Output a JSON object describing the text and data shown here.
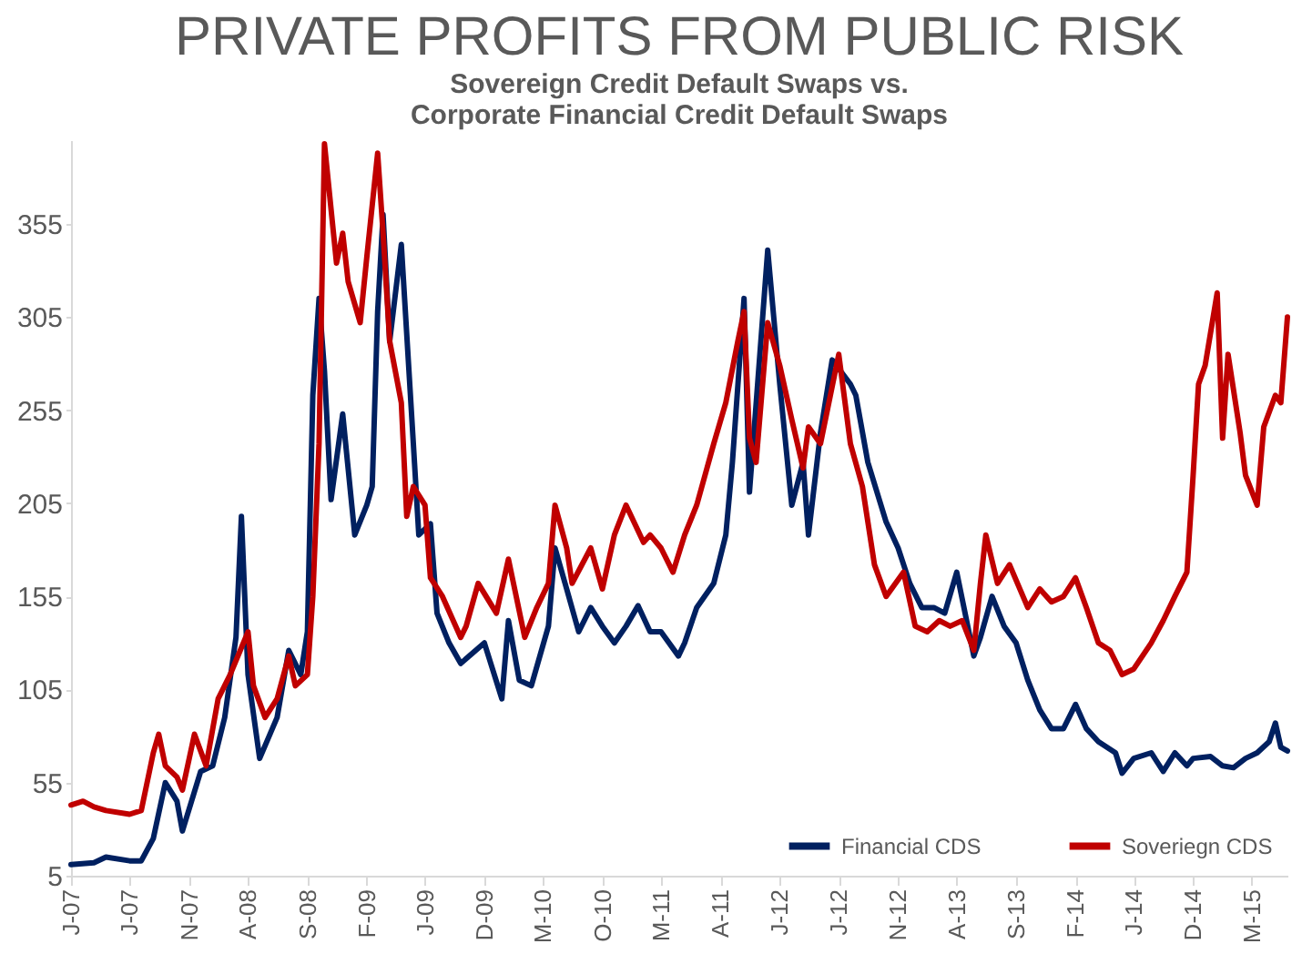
{
  "chart_data": {
    "type": "line",
    "title": "PRIVATE PROFITS FROM PUBLIC RISK",
    "subtitle": "Sovereign Credit Default Swaps vs.\nCorporate Financial Credit Default Swaps",
    "xlim": [
      "2007-01",
      "2015-08"
    ],
    "xticks": [
      {
        "value": "2007-01",
        "label": "J-07"
      },
      {
        "value": "2007-06",
        "label": "J-07"
      },
      {
        "value": "2007-11",
        "label": "N-07"
      },
      {
        "value": "2008-04",
        "label": "A-08"
      },
      {
        "value": "2008-09",
        "label": "S-08"
      },
      {
        "value": "2009-02",
        "label": "F-09"
      },
      {
        "value": "2009-07",
        "label": "J-09"
      },
      {
        "value": "2009-12",
        "label": "D-09"
      },
      {
        "value": "2010-05",
        "label": "M-10"
      },
      {
        "value": "2010-10",
        "label": "O-10"
      },
      {
        "value": "2011-03",
        "label": "M-11"
      },
      {
        "value": "2011-08",
        "label": "A-11"
      },
      {
        "value": "2012-01",
        "label": "J-12"
      },
      {
        "value": "2012-06",
        "label": "J-12"
      },
      {
        "value": "2012-11",
        "label": "N-12"
      },
      {
        "value": "2013-04",
        "label": "A-13"
      },
      {
        "value": "2013-09",
        "label": "S-13"
      },
      {
        "value": "2014-02",
        "label": "F-14"
      },
      {
        "value": "2014-07",
        "label": "J-14"
      },
      {
        "value": "2014-12",
        "label": "D-14"
      },
      {
        "value": "2015-05",
        "label": "M-15"
      }
    ],
    "ylim": [
      5,
      400
    ],
    "yticks": [
      5,
      55,
      105,
      155,
      205,
      255,
      305,
      355
    ],
    "grid": false,
    "legend": "bottom right",
    "line_style": "solid",
    "series": [
      {
        "name": "Financial CDS",
        "color": "#002060",
        "x": [
          "2007-01",
          "2007-03",
          "2007-04",
          "2007-06",
          "2007-07",
          "2007-08",
          "2007-09",
          "2007-10",
          "2007-10-15",
          "2007-12",
          "2008-01",
          "2008-02",
          "2008-03",
          "2008-03-15",
          "2008-04",
          "2008-05",
          "2008-06-15",
          "2008-07-15",
          "2008-08-15",
          "2008-09",
          "2008-09-15",
          "2008-10",
          "2008-10-15",
          "2008-11",
          "2008-12",
          "2009-01",
          "2009-02",
          "2009-02-15",
          "2009-03",
          "2009-03-15",
          "2009-04",
          "2009-05",
          "2009-06",
          "2009-06-15",
          "2009-07-15",
          "2009-08",
          "2009-09",
          "2009-10",
          "2009-12",
          "2010-01-15",
          "2010-02",
          "2010-03",
          "2010-04",
          "2010-05-15",
          "2010-06",
          "2010-07",
          "2010-08",
          "2010-09",
          "2010-10",
          "2010-11",
          "2010-12",
          "2011-01",
          "2011-02",
          "2011-03",
          "2011-04-15",
          "2011-05",
          "2011-06",
          "2011-07-15",
          "2011-08-15",
          "2011-09",
          "2011-10",
          "2011-10-15",
          "2011-12",
          "2012-01",
          "2012-02",
          "2012-03",
          "2012-03-15",
          "2012-04-15",
          "2012-05-15",
          "2012-07",
          "2012-07-15",
          "2012-08-15",
          "2012-10",
          "2012-11",
          "2012-12",
          "2013-01",
          "2013-02",
          "2013-03",
          "2013-04",
          "2013-05-15",
          "2013-06",
          "2013-07",
          "2013-08",
          "2013-09",
          "2013-10",
          "2013-11",
          "2013-12",
          "2014-01",
          "2014-02",
          "2014-03",
          "2014-04",
          "2014-05-15",
          "2014-06",
          "2014-07",
          "2014-08-15",
          "2014-09-15",
          "2014-10-15",
          "2014-11-15",
          "2014-12",
          "2015-01-15",
          "2015-02-15",
          "2015-03-15",
          "2015-04-15",
          "2015-05-15",
          "2015-06-15",
          "2015-07",
          "2015-07-15",
          "2015-08"
        ],
        "values": [
          11,
          12,
          15,
          13,
          13,
          25,
          55,
          45,
          29,
          61,
          64,
          90,
          133,
          198,
          113,
          68,
          90,
          126,
          113,
          136,
          263,
          315,
          276,
          207,
          253,
          188,
          204,
          214,
          308,
          360,
          292,
          344,
          237,
          188,
          194,
          146,
          130,
          119,
          130,
          100,
          142,
          110,
          107,
          139,
          181,
          159,
          136,
          149,
          139,
          130,
          139,
          150,
          136,
          136,
          123,
          130,
          149,
          162,
          188,
          227,
          315,
          211,
          341,
          269,
          204,
          227,
          188,
          243,
          282,
          269,
          263,
          227,
          195,
          181,
          162,
          149,
          149,
          146,
          168,
          123,
          133,
          155,
          139,
          130,
          110,
          94,
          84,
          84,
          97,
          84,
          77,
          71,
          60,
          68,
          71,
          61,
          71,
          64,
          68,
          69,
          64,
          63,
          68,
          71,
          77,
          87,
          74,
          72
        ]
      },
      {
        "name": "Soveriegn CDS",
        "color": "#c00000",
        "x": [
          "2007-01",
          "2007-02",
          "2007-03",
          "2007-04",
          "2007-06",
          "2007-07",
          "2007-08",
          "2007-08-15",
          "2007-09",
          "2007-10",
          "2007-10-15",
          "2007-11-15",
          "2007-12-15",
          "2008-01-15",
          "2008-02-15",
          "2008-04",
          "2008-04-15",
          "2008-05-15",
          "2008-06-15",
          "2008-07-15",
          "2008-08",
          "2008-09",
          "2008-09-15",
          "2008-10",
          "2008-10-15",
          "2008-11-15",
          "2008-12",
          "2008-12-15",
          "2009-01-15",
          "2009-02",
          "2009-03",
          "2009-03-15",
          "2009-04",
          "2009-05",
          "2009-05-15",
          "2009-06",
          "2009-07",
          "2009-07-15",
          "2009-08-15",
          "2009-10",
          "2009-10-15",
          "2009-11-15",
          "2010-01",
          "2010-02",
          "2010-03-15",
          "2010-04-15",
          "2010-05-15",
          "2010-06",
          "2010-07",
          "2010-07-15",
          "2010-09",
          "2010-10",
          "2010-11",
          "2010-12",
          "2011-01-15",
          "2011-02",
          "2011-03",
          "2011-04",
          "2011-05",
          "2011-06",
          "2011-07-15",
          "2011-08-15",
          "2011-09-15",
          "2011-10",
          "2011-10-15",
          "2011-11",
          "2011-12",
          "2012-01",
          "2012-02",
          "2012-03",
          "2012-03-15",
          "2012-04-15",
          "2012-06",
          "2012-07",
          "2012-08",
          "2012-09",
          "2012-10",
          "2012-11-15",
          "2012-12-15",
          "2013-01-15",
          "2013-02-15",
          "2013-03-15",
          "2013-04-15",
          "2013-05-15",
          "2013-06",
          "2013-06-15",
          "2013-07-15",
          "2013-08-15",
          "2013-10",
          "2013-11",
          "2013-12",
          "2014-01",
          "2014-02",
          "2014-03",
          "2014-04",
          "2014-05",
          "2014-06",
          "2014-07",
          "2014-08-15",
          "2014-09-15",
          "2014-10-15",
          "2014-11-15",
          "2014-12",
          "2014-12-15",
          "2015-01",
          "2015-02",
          "2015-02-15",
          "2015-03",
          "2015-04",
          "2015-04-15",
          "2015-05-15",
          "2015-06",
          "2015-07",
          "2015-07-15",
          "2015-08"
        ],
        "values": [
          43,
          45,
          42,
          40,
          38,
          40,
          71,
          81,
          64,
          58,
          51,
          81,
          64,
          100,
          113,
          136,
          107,
          90,
          100,
          123,
          107,
          113,
          155,
          237,
          398,
          334,
          350,
          324,
          302,
          337,
          393,
          350,
          292,
          259,
          198,
          214,
          204,
          165,
          155,
          133,
          139,
          162,
          146,
          175,
          133,
          149,
          162,
          204,
          181,
          162,
          181,
          159,
          188,
          204,
          184,
          188,
          181,
          168,
          188,
          204,
          237,
          259,
          292,
          308,
          240,
          227,
          302,
          279,
          250,
          224,
          246,
          237,
          285,
          237,
          214,
          172,
          155,
          168,
          139,
          136,
          142,
          139,
          142,
          126,
          162,
          188,
          162,
          172,
          149,
          159,
          152,
          155,
          165,
          149,
          130,
          126,
          113,
          116,
          130,
          142,
          155,
          168,
          220,
          269,
          279,
          318,
          240,
          285,
          243,
          220,
          204,
          246,
          263,
          259,
          305
        ]
      }
    ]
  }
}
